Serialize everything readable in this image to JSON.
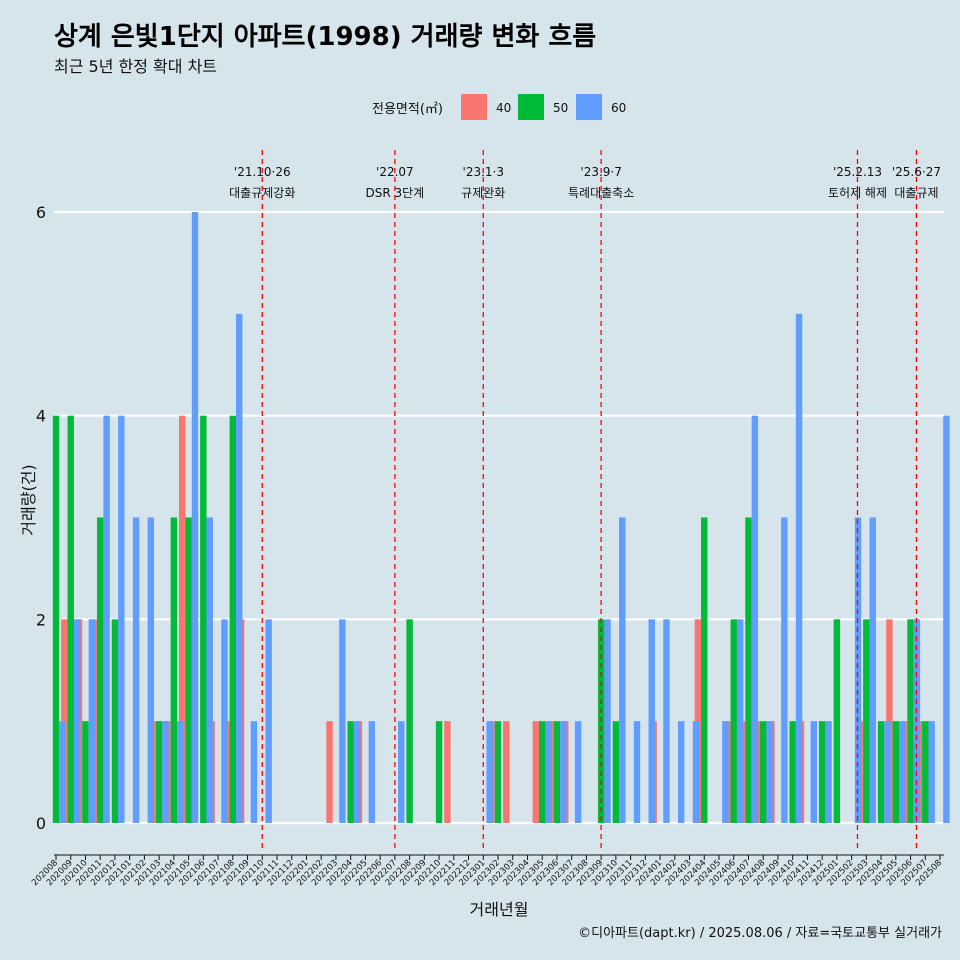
{
  "title": "상계 은빛1단지 아파트(1998) 거래량 변화 흐름",
  "subtitle": "최근 5년 한정 확대 차트",
  "caption": "©디아파트(dapt.kr) / 2025.08.06 / 자료=국토교통부 실거래가",
  "chart_data": {
    "type": "bar",
    "xlabel": "거래년월",
    "ylabel": "거래량(건)",
    "ylim": [
      0,
      6.3
    ],
    "y_ticks": [
      0,
      2,
      4,
      6
    ],
    "grid": true,
    "legend_placement": "top",
    "legend_title": "전용면적(㎡)",
    "categories": [
      "202008",
      "202009",
      "202010",
      "202011",
      "202012",
      "202101",
      "202102",
      "202103",
      "202104",
      "202105",
      "202106",
      "202107",
      "202108",
      "202109",
      "202110",
      "202111",
      "202112",
      "202201",
      "202202",
      "202203",
      "202204",
      "202205",
      "202206",
      "202207",
      "202208",
      "202209",
      "202210",
      "202211",
      "202212",
      "202301",
      "202302",
      "202303",
      "202304",
      "202305",
      "202306",
      "202307",
      "202308",
      "202309",
      "202310",
      "202311",
      "202312",
      "202401",
      "202402",
      "202403",
      "202404",
      "202405",
      "202406",
      "202407",
      "202408",
      "202409",
      "202410",
      "202411",
      "202412",
      "202501",
      "202502",
      "202503",
      "202504",
      "202505",
      "202506",
      "202507",
      "202508"
    ],
    "series": [
      {
        "name": "40",
        "color": "#f8766d",
        "values": [
          0,
          2,
          2,
          2,
          0,
          0,
          0,
          1,
          1,
          4,
          0,
          1,
          1,
          2,
          0,
          0,
          0,
          0,
          0,
          1,
          0,
          1,
          0,
          0,
          0,
          0,
          0,
          1,
          0,
          0,
          1,
          1,
          0,
          1,
          1,
          1,
          0,
          0,
          0,
          0,
          0,
          1,
          0,
          0,
          2,
          0,
          1,
          1,
          1,
          1,
          0,
          1,
          0,
          0,
          0,
          1,
          0,
          2,
          1,
          1,
          0
        ]
      },
      {
        "name": "50",
        "color": "#00ba38",
        "values": [
          4,
          4,
          1,
          3,
          2,
          0,
          0,
          1,
          3,
          3,
          4,
          0,
          4,
          0,
          0,
          0,
          0,
          0,
          0,
          0,
          1,
          0,
          0,
          0,
          2,
          0,
          1,
          0,
          0,
          0,
          1,
          0,
          0,
          1,
          1,
          0,
          0,
          2,
          1,
          0,
          0,
          0,
          0,
          0,
          3,
          0,
          2,
          3,
          1,
          0,
          1,
          0,
          1,
          2,
          0,
          2,
          1,
          1,
          2,
          1,
          0
        ]
      },
      {
        "name": "60",
        "color": "#619cff",
        "values": [
          1,
          2,
          2,
          4,
          4,
          3,
          3,
          1,
          1,
          6,
          3,
          2,
          5,
          1,
          2,
          0,
          0,
          0,
          0,
          2,
          1,
          1,
          0,
          1,
          0,
          0,
          0,
          0,
          0,
          1,
          0,
          0,
          0,
          1,
          1,
          1,
          0,
          2,
          3,
          1,
          2,
          2,
          1,
          1,
          0,
          1,
          2,
          4,
          1,
          3,
          5,
          1,
          1,
          0,
          3,
          3,
          1,
          1,
          2,
          1,
          4
        ]
      }
    ],
    "events": [
      {
        "index": 14.0,
        "date": "'21.10·26",
        "label": "대출규제강화"
      },
      {
        "index": 23.0,
        "date": "'22.07",
        "label": "DSR 3단계"
      },
      {
        "index": 29.0,
        "date": "'23.1·3",
        "label": "규제완화"
      },
      {
        "index": 37.0,
        "date": "'23.9·7",
        "label": "특례대출축소"
      },
      {
        "index": 54.4,
        "date": "'25.2.13",
        "label": "토허제 해제"
      },
      {
        "index": 58.4,
        "date": "'25.6·27",
        "label": "대출규제"
      }
    ]
  }
}
